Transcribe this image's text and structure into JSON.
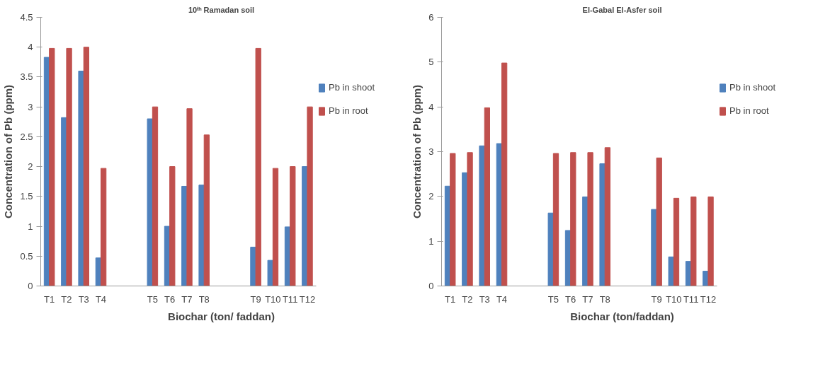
{
  "chart_data": [
    {
      "type": "bar",
      "title": "10ᵗʰ Ramadan soil",
      "xlabel": "Biochar (ton/ faddan)",
      "ylabel": "Concentration of Pb (ppm)",
      "categories": [
        "T1",
        "T2",
        "T3",
        "T4",
        null,
        null,
        "T5",
        "T6",
        "T7",
        "T8",
        null,
        null,
        "T9",
        "T10",
        "T11",
        "T12"
      ],
      "series": [
        {
          "name": "Pb in shoot",
          "color": "#4f81bd",
          "values": [
            3.83,
            2.82,
            3.6,
            0.47,
            null,
            null,
            2.8,
            1.0,
            1.67,
            1.69,
            null,
            null,
            0.65,
            0.43,
            0.99,
            2.0
          ]
        },
        {
          "name": "Pb in root",
          "color": "#c0504d",
          "values": [
            3.98,
            3.98,
            4.0,
            1.97,
            null,
            null,
            3.0,
            2.0,
            2.97,
            2.53,
            null,
            null,
            3.98,
            1.97,
            2.0,
            3.0
          ]
        }
      ],
      "ylim": [
        0,
        4.5
      ],
      "yticks": [
        0,
        0.5,
        1,
        1.5,
        2,
        2.5,
        3,
        3.5,
        4,
        4.5
      ],
      "grid": false,
      "legend": "right"
    },
    {
      "type": "bar",
      "title": "El-Gabal El-Asfer soil",
      "xlabel": "Biochar (ton/faddan)",
      "ylabel": "Concentration of Pb (ppm)",
      "categories": [
        "T1",
        "T2",
        "T3",
        "T4",
        null,
        null,
        "T5",
        "T6",
        "T7",
        "T8",
        null,
        null,
        "T9",
        "T10",
        "T11",
        "T12"
      ],
      "series": [
        {
          "name": "Pb in shoot",
          "color": "#4f81bd",
          "values": [
            2.23,
            2.53,
            3.13,
            3.18,
            null,
            null,
            1.63,
            1.24,
            1.99,
            2.73,
            null,
            null,
            1.71,
            0.65,
            0.55,
            0.33
          ]
        },
        {
          "name": "Pb in root",
          "color": "#c0504d",
          "values": [
            2.96,
            2.98,
            3.98,
            4.98,
            null,
            null,
            2.96,
            2.98,
            2.98,
            3.09,
            null,
            null,
            2.86,
            1.96,
            1.99,
            1.99
          ]
        }
      ],
      "ylim": [
        0,
        6
      ],
      "yticks": [
        0,
        1,
        2,
        3,
        4,
        5,
        6
      ],
      "grid": false,
      "legend": "right"
    }
  ]
}
